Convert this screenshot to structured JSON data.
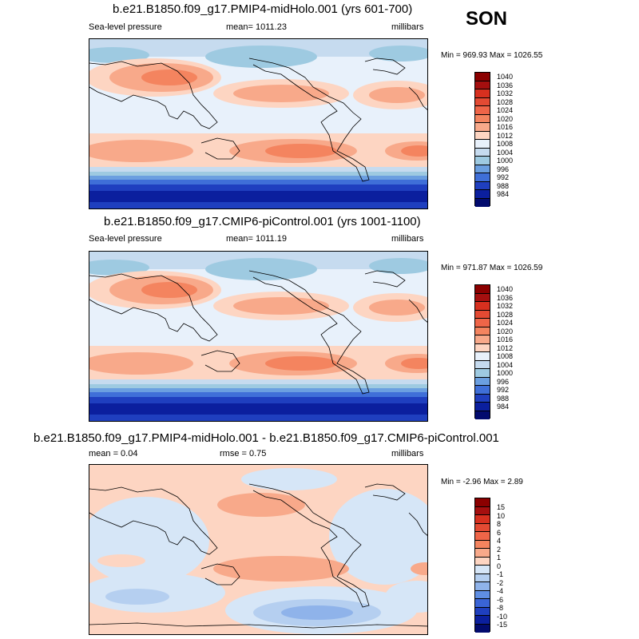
{
  "season": "SON",
  "panels": [
    {
      "title": "b.e21.B1850.f09_g17.PMIP4-midHolo.001 (yrs 601-700)",
      "left_label": "Sea-level pressure",
      "center_label": "mean= 1011.23",
      "right_label": "millibars",
      "minmax": "Min = 969.93 Max = 1026.55"
    },
    {
      "title": "b.e21.B1850.f09_g17.CMIP6-piControl.001 (yrs 1001-1100)",
      "left_label": "Sea-level pressure",
      "center_label": "mean= 1011.19",
      "right_label": "millibars",
      "minmax": "Min = 971.87 Max = 1026.59"
    },
    {
      "title": "b.e21.B1850.f09_g17.PMIP4-midHolo.001 - b.e21.B1850.f09_g17.CMIP6-piControl.001",
      "left_label": "mean =   0.04",
      "center_label": "rmse =   0.75",
      "right_label": "millibars",
      "minmax": "Min =  -2.96 Max =   2.89"
    }
  ],
  "colorbars": {
    "absolute": {
      "labels": [
        "1040",
        "1036",
        "1032",
        "1028",
        "1024",
        "1020",
        "1016",
        "1012",
        "1008",
        "1004",
        "1000",
        "996",
        "992",
        "988",
        "984"
      ],
      "colors": [
        "#8b0000",
        "#a50f0f",
        "#d7301f",
        "#e34a33",
        "#ef6548",
        "#f4845f",
        "#f8a98a",
        "#fdd5c2",
        "#e8f1fb",
        "#c6dbef",
        "#9ecae1",
        "#6b9fe0",
        "#3f6fd8",
        "#1f3fbf",
        "#0b1f9e",
        "#020b6e"
      ]
    },
    "difference": {
      "labels": [
        "15",
        "10",
        "8",
        "6",
        "4",
        "2",
        "1",
        "0",
        "-1",
        "-2",
        "-4",
        "-6",
        "-8",
        "-10",
        "-15"
      ],
      "colors": [
        "#8b0000",
        "#a50f0f",
        "#d7301f",
        "#e34a33",
        "#ef6548",
        "#f4845f",
        "#f8a98a",
        "#fdd5c2",
        "#d6e6f7",
        "#b5cff0",
        "#8fb3ea",
        "#5f8ee3",
        "#3a64d6",
        "#1f3fbf",
        "#0b1f9e",
        "#020b6e"
      ]
    }
  }
}
